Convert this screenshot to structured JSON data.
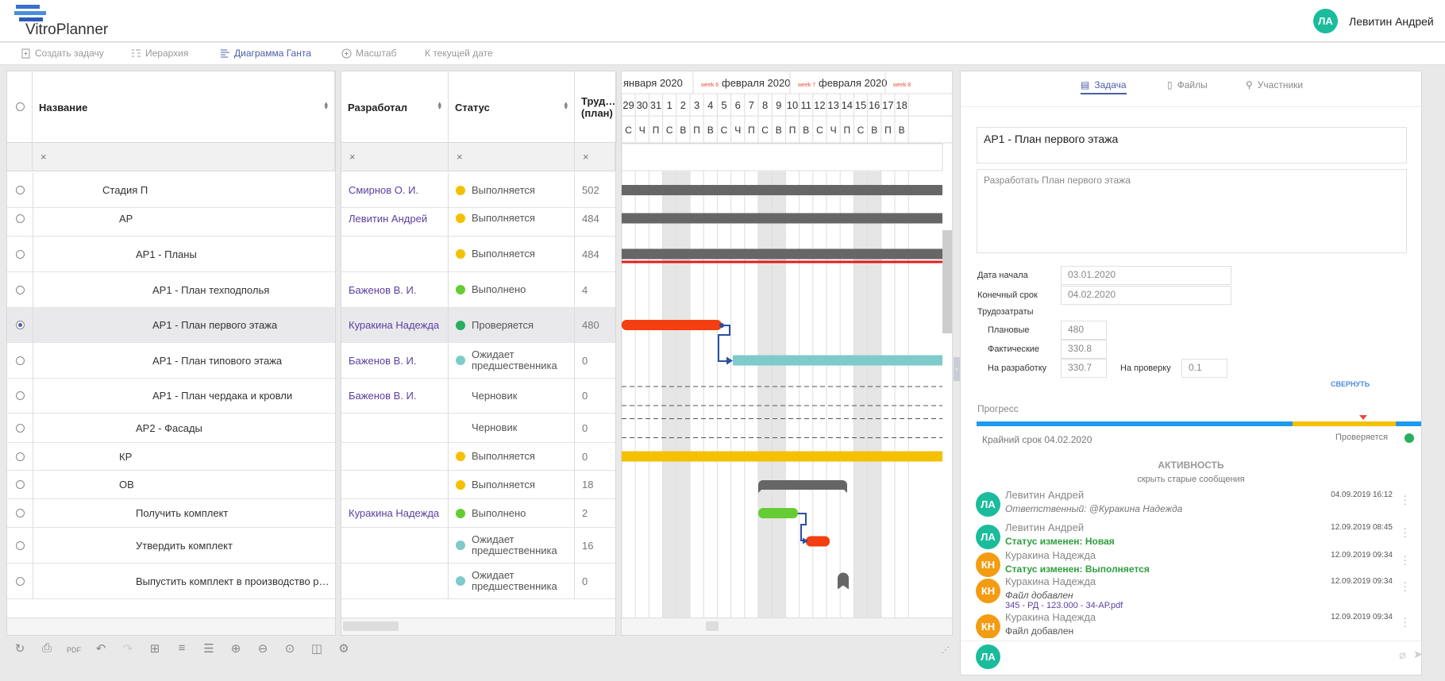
{
  "app": {
    "name": "VitroPlanner"
  },
  "user": {
    "initials": "ЛА",
    "name": "Левитин Андрей"
  },
  "toolbar": {
    "create_task": "Создать задачу",
    "hierarchy": "Иерархия",
    "gantt": "Диаграмма Ганта",
    "scale": "Масштаб",
    "to_today": "К текущей дате"
  },
  "grid": {
    "columns": {
      "name": "Название",
      "developer": "Разработал",
      "status": "Статус",
      "labor": "Труд…",
      "labor_sub": "(план)"
    },
    "filter_clear": "×",
    "rows": [
      {
        "name": "Стадия П",
        "developer": "Смирнов О. И.",
        "status": "Выполняется",
        "status_color": "#f5c000",
        "labor": "502"
      },
      {
        "name": "АР",
        "developer": "Левитин Андрей",
        "status": "Выполняется",
        "status_color": "#f5c000",
        "labor": "484"
      },
      {
        "name": "АР1 - Планы",
        "developer": "",
        "status": "Выполняется",
        "status_color": "#f5c000",
        "labor": "484"
      },
      {
        "name": "АР1 - План техподполья",
        "developer": "Баженов В. И.",
        "status": "Выполнено",
        "status_color": "#66cc33",
        "labor": "4"
      },
      {
        "name": "АР1 - План первого этажа",
        "developer": "Куракина Надежда",
        "status": "Проверяется",
        "status_color": "#27ae60",
        "labor": "480"
      },
      {
        "name": "АР1 - План типового этажа",
        "developer": "Баженов В. И.",
        "status": "Ожидает предшественника",
        "status_color": "#7fcaca",
        "labor": "0"
      },
      {
        "name": "АР1 - План чердака и кровли",
        "developer": "Баженов В. И.",
        "status": "Черновик",
        "status_color": "",
        "labor": "0"
      },
      {
        "name": "АР2 - Фасады",
        "developer": "",
        "status": "Черновик",
        "status_color": "",
        "labor": "0"
      },
      {
        "name": "КР",
        "developer": "",
        "status": "Выполняется",
        "status_color": "#f5c000",
        "labor": "0"
      },
      {
        "name": "ОВ",
        "developer": "",
        "status": "Выполняется",
        "status_color": "#f5c000",
        "labor": "18"
      },
      {
        "name": "Получить комплект",
        "developer": "Куракина Надежда",
        "status": "Выполнено",
        "status_color": "#66cc33",
        "labor": "2"
      },
      {
        "name": "Утвердить комплект",
        "developer": "",
        "status": "Ожидает предшественника",
        "status_color": "#7fcaca",
        "labor": "16"
      },
      {
        "name": "Выпустить комплект в производство р…",
        "developer": "",
        "status": "Ожидает предшественника",
        "status_color": "#7fcaca",
        "labor": "0"
      }
    ]
  },
  "gantt": {
    "months": [
      {
        "week": "",
        "label": "января 2020"
      },
      {
        "week": "week 6",
        "label": "февраля 2020"
      },
      {
        "week": "week 7",
        "label": "февраля 2020"
      },
      {
        "week": "week 8",
        "label": ""
      }
    ],
    "days": [
      "29",
      "30",
      "31",
      "1",
      "2",
      "3",
      "4",
      "5",
      "6",
      "7",
      "8",
      "9",
      "10",
      "11",
      "12",
      "13",
      "14",
      "15",
      "16",
      "17",
      "18"
    ],
    "weekdays": [
      "С",
      "Ч",
      "П",
      "С",
      "В",
      "П",
      "В",
      "С",
      "Ч",
      "П",
      "С",
      "В",
      "П",
      "В",
      "С",
      "Ч",
      "П",
      "С",
      "В",
      "П",
      "В"
    ]
  },
  "details": {
    "tabs": {
      "task": "Задача",
      "files": "Файлы",
      "members": "Участники"
    },
    "title": "АР1 - План первого этажа",
    "description": "Разработать План первого этажа",
    "start_label": "Дата начала",
    "start_value": "03.01.2020",
    "deadline_label": "Конечный срок",
    "deadline_value": "04.02.2020",
    "labor_label": "Трудозатраты",
    "planned_label": "Плановые",
    "planned_value": "480",
    "actual_label": "Фактические",
    "actual_value": "330.8",
    "dev_label": "На разработку",
    "dev_value": "330.7",
    "review_label": "На проверку",
    "review_value": "0.1",
    "collapse": "СВЕРНУТЬ",
    "progress_label": "Прогресс",
    "deadline_note": "Крайний срок 04.02.2020",
    "progress_status": "Проверяется",
    "progress_status_color": "#27ae60"
  },
  "activity": {
    "title": "АКТИВНОСТЬ",
    "hide_old": "скрыть старые сообщения",
    "items": [
      {
        "initials": "ЛА",
        "color": "#1abc9c",
        "name": "Левитин Андрей",
        "time": "04.09.2019 16:12",
        "text": "Ответственный: @Куракина Надежда",
        "text2": ""
      },
      {
        "initials": "ЛА",
        "color": "#1abc9c",
        "name": "Левитин Андрей",
        "time": "12.09.2019 08:45",
        "text": "Статус изменен: Новая",
        "text2": ""
      },
      {
        "initials": "КН",
        "color": "#f39c12",
        "name": "Куракина Надежда",
        "time": "12.09.2019 09:34",
        "text": "Статус изменен: Выполняется",
        "text2": ""
      },
      {
        "initials": "КН",
        "color": "#f39c12",
        "name": "Куракина Надежда",
        "time": "12.09.2019 09:34",
        "text": "Файл добавлен",
        "text2": "345 - РД - 123.000 - 34-АР.pdf"
      },
      {
        "initials": "КН",
        "color": "#f39c12",
        "name": "Куракина Надежда",
        "time": "12.09.2019 09:34",
        "text": "Файл добавлен",
        "text2": ""
      }
    ],
    "composer_initials": "ЛА"
  }
}
